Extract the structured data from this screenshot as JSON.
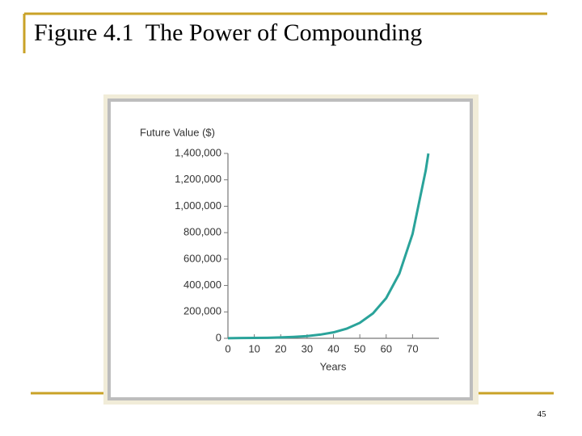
{
  "title": "Figure 4.1  The Power of Compounding",
  "page_number": "45",
  "chart_data": {
    "type": "line",
    "ylabel": "Future Value ($)",
    "xlabel": "Years",
    "x": [
      0,
      5,
      10,
      15,
      20,
      25,
      30,
      35,
      40,
      45,
      50,
      55,
      60,
      65,
      70,
      75,
      76
    ],
    "values": [
      1000,
      2000,
      3000,
      4000,
      7000,
      11000,
      17000,
      28000,
      45000,
      73000,
      117000,
      189000,
      304000,
      490000,
      790000,
      1272000,
      1399000
    ],
    "color": "#2aa39a",
    "xlim": [
      0,
      80
    ],
    "ylim": [
      0,
      1400000
    ],
    "xticks": [
      0,
      10,
      20,
      30,
      40,
      50,
      60,
      70
    ],
    "yticks": [
      0,
      {
        "value": 200000,
        "label": "200,000"
      },
      {
        "value": 400000,
        "label": "400,000"
      },
      {
        "value": 600000,
        "label": "600,000"
      },
      {
        "value": 800000,
        "label": "800,000"
      },
      {
        "value": 1000000,
        "label": "1,000,000"
      },
      {
        "value": 1200000,
        "label": "1,200,000"
      },
      {
        "value": 1400000,
        "label": "1,400,000"
      }
    ]
  }
}
